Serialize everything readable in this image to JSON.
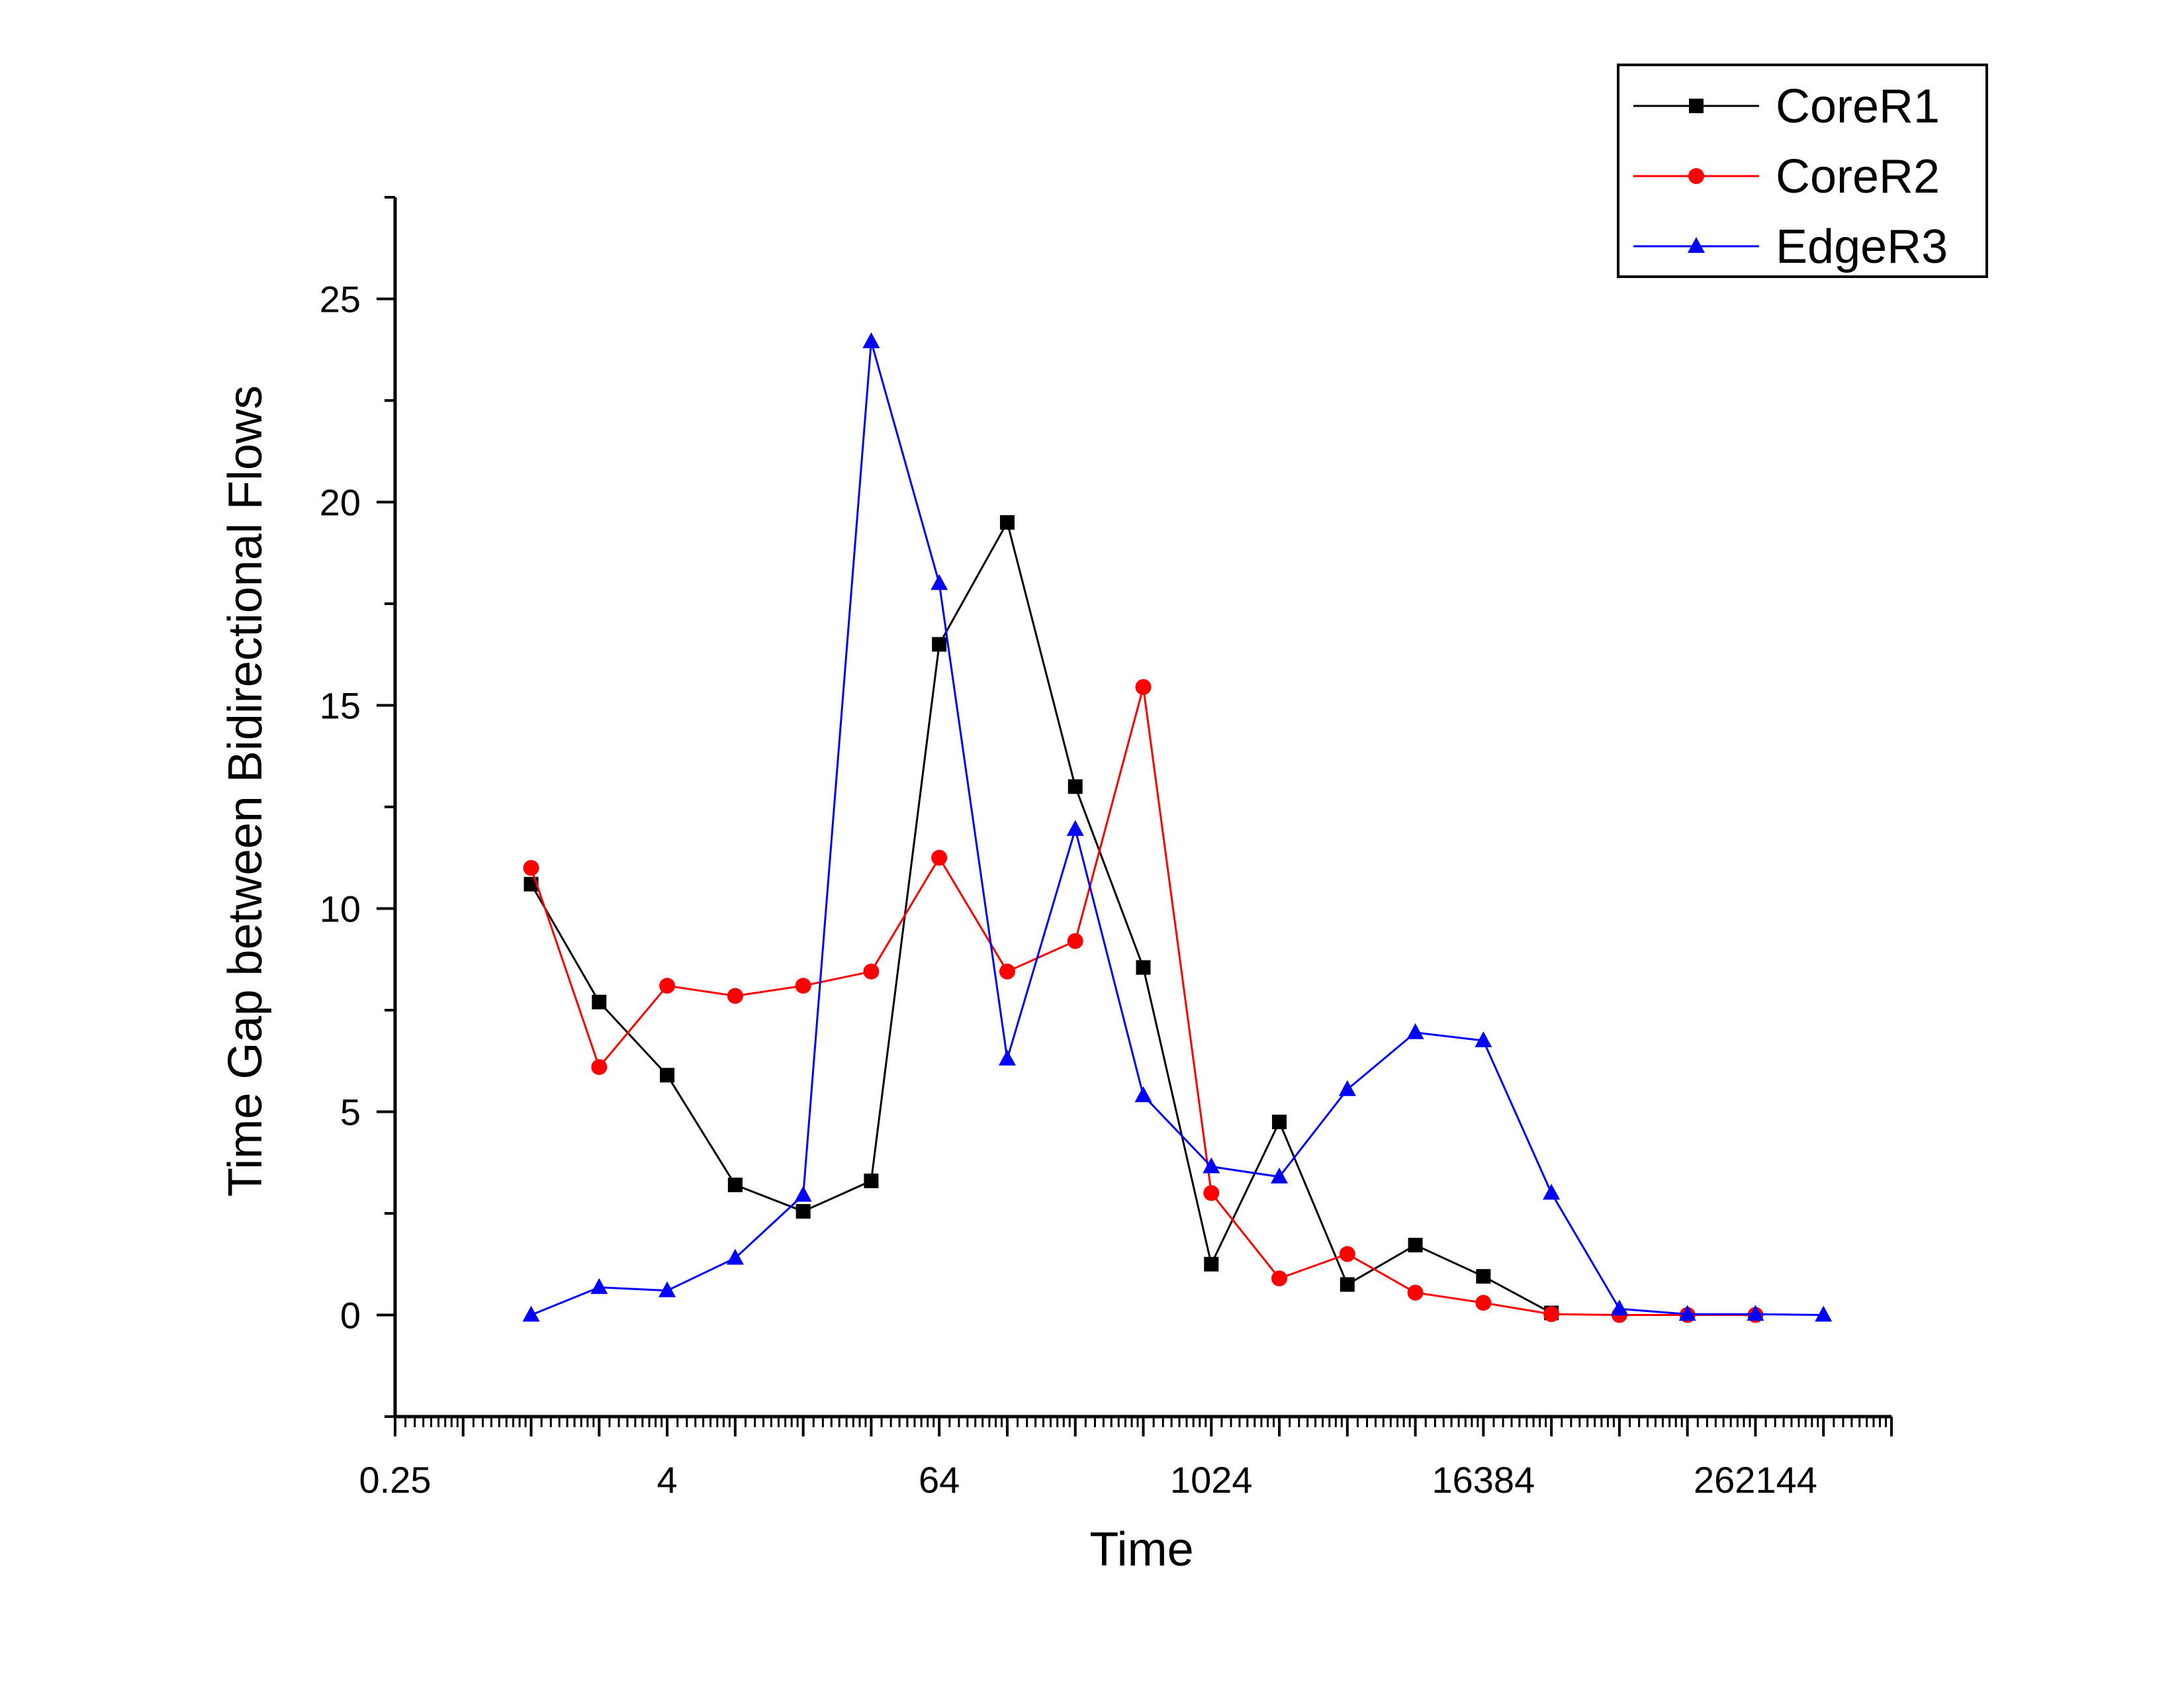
{
  "chart_data": {
    "type": "line",
    "title": "",
    "xlabel": "Time",
    "ylabel": "Time Gap between Bidirectional Flows",
    "xscale": "log2",
    "x": [
      1,
      2,
      4,
      8,
      16,
      32,
      64,
      128,
      256,
      512,
      1024,
      2048,
      4096,
      8192,
      16384,
      32768,
      65536,
      131072,
      262144,
      524288
    ],
    "xlim": [
      0.25,
      1048576
    ],
    "ylim": [
      -2.5,
      27.5
    ],
    "x_ticks": [
      0.25,
      4,
      64,
      1024,
      16384,
      262144
    ],
    "x_tick_labels": [
      "0.25",
      "4",
      "64",
      "1024",
      "16384",
      "262144"
    ],
    "y_ticks": [
      0,
      5,
      10,
      15,
      20,
      25
    ],
    "y_tick_labels": [
      "0",
      "5",
      "10",
      "15",
      "20",
      "25"
    ],
    "legend_position": "top-right",
    "series": [
      {
        "name": "CoreR1",
        "color": "#000000",
        "marker": "square",
        "values": [
          10.6,
          7.7,
          5.9,
          3.2,
          2.55,
          3.3,
          16.5,
          19.5,
          13.0,
          8.55,
          1.25,
          4.75,
          0.75,
          1.72,
          0.95,
          0.05,
          null,
          null,
          null,
          null
        ]
      },
      {
        "name": "CoreR2",
        "color": "#ff0000",
        "marker": "circle",
        "values": [
          11.0,
          6.1,
          8.1,
          7.85,
          8.1,
          8.45,
          11.25,
          8.45,
          9.2,
          15.45,
          3.0,
          0.9,
          1.5,
          0.55,
          0.3,
          0.02,
          0.0,
          0.0,
          0.0,
          null
        ]
      },
      {
        "name": "EdgeR3",
        "color": "#0000ff",
        "marker": "triangle",
        "values": [
          0.0,
          0.68,
          0.6,
          1.4,
          2.95,
          23.95,
          18.0,
          6.3,
          11.95,
          5.4,
          3.65,
          3.4,
          5.55,
          6.95,
          6.75,
          3.0,
          0.15,
          0.02,
          0.02,
          0.0
        ]
      }
    ]
  }
}
